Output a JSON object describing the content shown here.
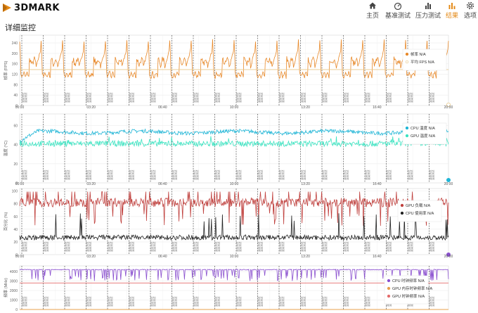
{
  "app": {
    "brand": "3DMARK"
  },
  "nav": [
    {
      "id": "home",
      "label": "主页",
      "icon": "home-icon",
      "active": false
    },
    {
      "id": "benchmark",
      "label": "基准测试",
      "icon": "gauge-icon",
      "active": false
    },
    {
      "id": "stress",
      "label": "压力测试",
      "icon": "bar-chart-icon",
      "active": false
    },
    {
      "id": "results",
      "label": "结果",
      "icon": "results-icon",
      "active": true
    },
    {
      "id": "options",
      "label": "选项",
      "icon": "gear-icon",
      "active": false
    }
  ],
  "page": {
    "title": "详细监控"
  },
  "colors": {
    "accent": "#e48a17",
    "fps": "#e8892a",
    "cpu_temp": "#1fb5d6",
    "gpu_temp": "#3be3c1",
    "gpu_load": "#c0413e",
    "cpu_load": "#222222",
    "cpu_clock": "#8a4fcf",
    "gpu_mem_clock": "#e8a04c",
    "gpu_clock": "#e36a6a"
  },
  "x_axis": {
    "ticks": [
      "00:00",
      "03:20",
      "06:40",
      "10:00",
      "13:20",
      "16:40",
      "20:00"
    ]
  },
  "chart_data": [
    {
      "type": "line",
      "ylabel": "帧率 (FPS)",
      "yticks": [
        0,
        40,
        80,
        120,
        160,
        200,
        240
      ],
      "ylim": [
        0,
        270
      ],
      "series": [
        {
          "name": "帧率",
          "value_text": "N/A",
          "pattern": {
            "cycles": 20,
            "base": 135,
            "low": 110,
            "peak": 245
          }
        },
        {
          "name": "平均 FPS",
          "value_text": "N/A",
          "constant": 138
        }
      ]
    },
    {
      "type": "line",
      "ylabel": "温度 (°C)",
      "yticks": [
        0,
        20,
        40,
        60
      ],
      "ylim": [
        0,
        72
      ],
      "series": [
        {
          "name": "CPU 温度",
          "value_text": "N/A",
          "pattern": {
            "start": 44,
            "level": 53,
            "jitter": 2
          }
        },
        {
          "name": "GPU 温度",
          "value_text": "N/A",
          "pattern": {
            "level": 41,
            "jitter": 3
          }
        }
      ]
    },
    {
      "type": "line",
      "ylabel": "百分比 (%)",
      "yticks": [
        0,
        20,
        40,
        60,
        80,
        100
      ],
      "ylim": [
        0,
        104
      ],
      "series": [
        {
          "name": "GPU 负载",
          "value_text": "N/A",
          "pattern": {
            "level": 82,
            "dips_to": 45,
            "peak": 99
          }
        },
        {
          "name": "CPU 使用率",
          "value_text": "N/A",
          "pattern": {
            "level": 27,
            "spikes_to": 50
          }
        }
      ]
    },
    {
      "type": "line",
      "ylabel": "频率 (MHz)",
      "yticks": [
        0,
        1000,
        2000,
        3000,
        4000
      ],
      "ylim": [
        0,
        4600
      ],
      "series": [
        {
          "name": "CPU 时钟频率",
          "value_text": "N/A",
          "pattern": {
            "level": 4200,
            "dips_to": 3000
          }
        },
        {
          "name": "GPU 内存时钟频率",
          "value_text": "N/A",
          "constant": 0
        },
        {
          "name": "GPU 时钟频率",
          "value_text": "N/A",
          "constant": 2800
        }
      ]
    }
  ],
  "markers": {
    "count": 20,
    "label_a": "渲染测试",
    "label_b": "渲染测试"
  }
}
